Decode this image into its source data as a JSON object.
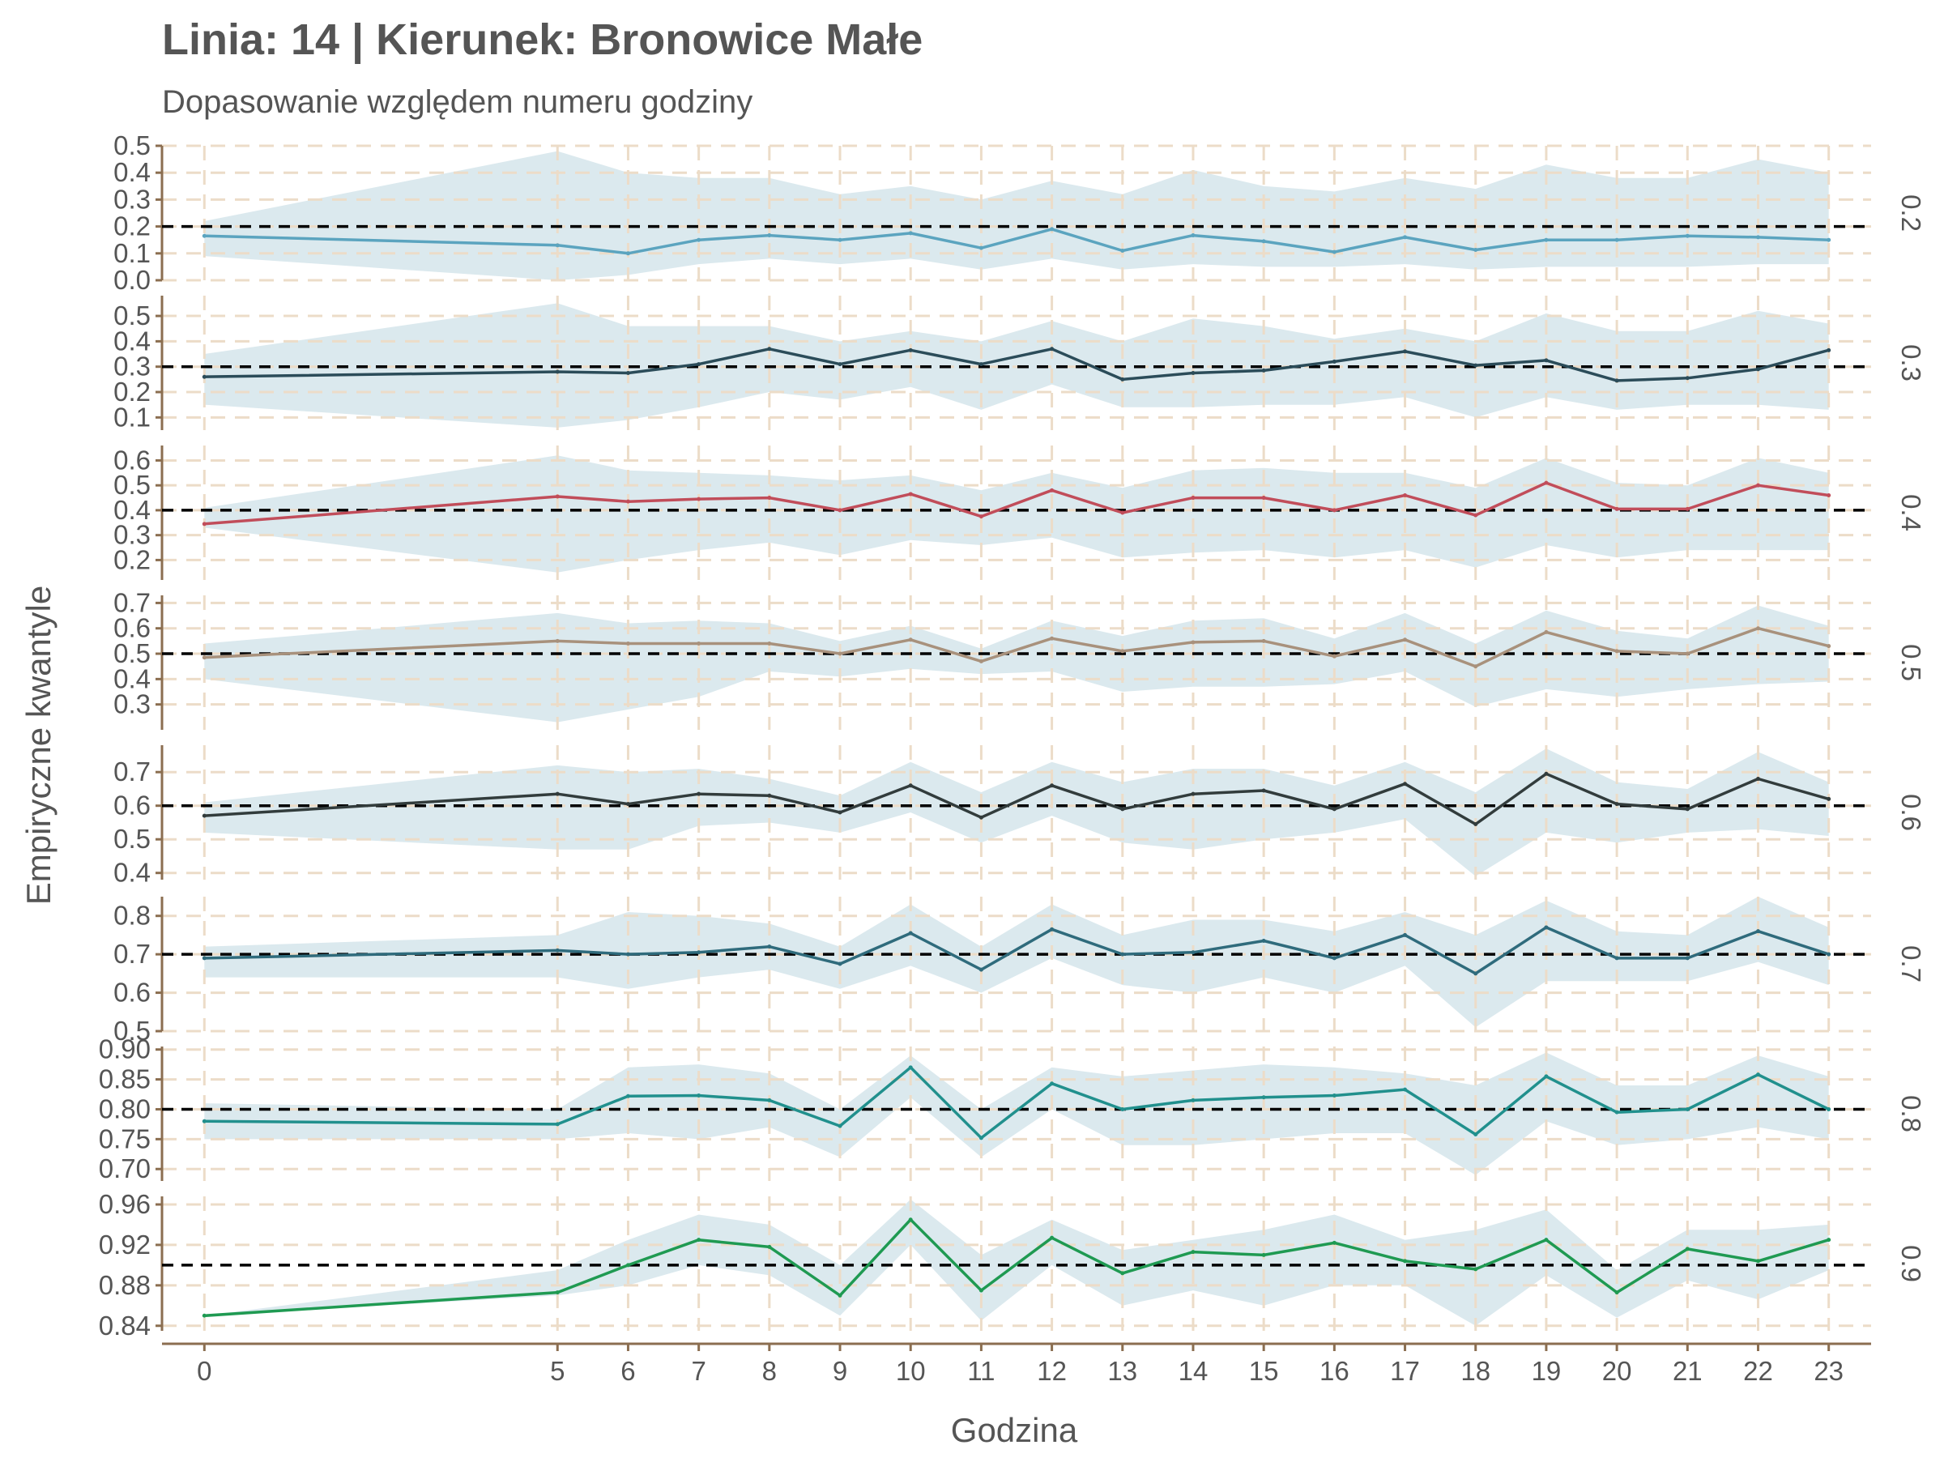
{
  "chart_data": {
    "type": "line",
    "title": "Linia: 14 | Kierunek: Bronowice Małe",
    "subtitle": "Dopasowanie względem numeru godziny",
    "xlabel": "Godzina",
    "ylabel": "Empiryczne kwantyle",
    "x": [
      0,
      5,
      6,
      7,
      8,
      9,
      10,
      11,
      12,
      13,
      14,
      15,
      16,
      17,
      18,
      19,
      20,
      21,
      22,
      23
    ],
    "xlim": [
      -0.6,
      23.6
    ],
    "grid": true,
    "colors": {
      "band": "#dbe9ee",
      "grid": "#ecdcc8",
      "axis": "#8b6e50",
      "reference": "#000000"
    },
    "panels": [
      {
        "label": "0.2",
        "reference": 0.2,
        "ylim": [
          0.0,
          0.5
        ],
        "ticks": [
          "0.0",
          "0.1",
          "0.2",
          "0.3",
          "0.4",
          "0.5"
        ],
        "tick_values": [
          0.0,
          0.1,
          0.2,
          0.3,
          0.4,
          0.5
        ],
        "color": "#5ba4bf",
        "values": [
          0.165,
          0.13,
          0.1,
          0.15,
          0.167,
          0.15,
          0.175,
          0.12,
          0.19,
          0.11,
          0.167,
          0.145,
          0.105,
          0.16,
          0.113,
          0.15,
          0.15,
          0.165,
          0.16,
          0.15
        ],
        "lower": [
          0.09,
          0.0,
          0.02,
          0.06,
          0.08,
          0.06,
          0.08,
          0.04,
          0.08,
          0.04,
          0.06,
          0.05,
          0.05,
          0.06,
          0.04,
          0.05,
          0.05,
          0.05,
          0.06,
          0.06
        ],
        "upper": [
          0.22,
          0.48,
          0.4,
          0.38,
          0.38,
          0.32,
          0.35,
          0.3,
          0.37,
          0.32,
          0.41,
          0.35,
          0.33,
          0.38,
          0.34,
          0.43,
          0.38,
          0.38,
          0.45,
          0.4
        ]
      },
      {
        "label": "0.3",
        "reference": 0.3,
        "ylim": [
          0.05,
          0.58
        ],
        "ticks": [
          "0.1",
          "0.2",
          "0.3",
          "0.4",
          "0.5"
        ],
        "tick_values": [
          0.1,
          0.2,
          0.3,
          0.4,
          0.5
        ],
        "color": "#2b4c59",
        "values": [
          0.26,
          0.28,
          0.275,
          0.31,
          0.37,
          0.31,
          0.365,
          0.31,
          0.37,
          0.25,
          0.275,
          0.285,
          0.32,
          0.36,
          0.305,
          0.325,
          0.245,
          0.255,
          0.29,
          0.365
        ],
        "lower": [
          0.15,
          0.06,
          0.09,
          0.14,
          0.2,
          0.17,
          0.22,
          0.13,
          0.23,
          0.14,
          0.14,
          0.15,
          0.15,
          0.18,
          0.1,
          0.18,
          0.13,
          0.15,
          0.15,
          0.13
        ],
        "upper": [
          0.35,
          0.55,
          0.46,
          0.46,
          0.46,
          0.4,
          0.44,
          0.4,
          0.48,
          0.4,
          0.49,
          0.46,
          0.41,
          0.45,
          0.4,
          0.51,
          0.44,
          0.44,
          0.52,
          0.47
        ]
      },
      {
        "label": "0.4",
        "reference": 0.4,
        "ylim": [
          0.12,
          0.66
        ],
        "ticks": [
          "0.2",
          "0.3",
          "0.4",
          "0.5",
          "0.6"
        ],
        "tick_values": [
          0.2,
          0.3,
          0.4,
          0.5,
          0.6
        ],
        "color": "#c14d5a",
        "values": [
          0.345,
          0.455,
          0.435,
          0.445,
          0.45,
          0.4,
          0.465,
          0.375,
          0.48,
          0.39,
          0.45,
          0.45,
          0.4,
          0.46,
          0.38,
          0.51,
          0.405,
          0.405,
          0.5,
          0.46
        ],
        "lower": [
          0.33,
          0.15,
          0.2,
          0.24,
          0.27,
          0.22,
          0.28,
          0.26,
          0.29,
          0.21,
          0.23,
          0.24,
          0.21,
          0.24,
          0.17,
          0.26,
          0.21,
          0.24,
          0.24,
          0.24
        ],
        "upper": [
          0.41,
          0.62,
          0.56,
          0.55,
          0.54,
          0.52,
          0.54,
          0.48,
          0.55,
          0.49,
          0.56,
          0.57,
          0.55,
          0.55,
          0.49,
          0.61,
          0.51,
          0.5,
          0.61,
          0.55
        ]
      },
      {
        "label": "0.5",
        "reference": 0.5,
        "ylim": [
          0.2,
          0.73
        ],
        "ticks": [
          "0.3",
          "0.4",
          "0.5",
          "0.6",
          "0.7"
        ],
        "tick_values": [
          0.3,
          0.4,
          0.5,
          0.6,
          0.7
        ],
        "color": "#a8917c",
        "values": [
          0.485,
          0.55,
          0.54,
          0.54,
          0.54,
          0.5,
          0.555,
          0.47,
          0.56,
          0.51,
          0.545,
          0.55,
          0.49,
          0.555,
          0.45,
          0.585,
          0.51,
          0.5,
          0.6,
          0.53
        ],
        "lower": [
          0.4,
          0.23,
          0.28,
          0.33,
          0.43,
          0.41,
          0.44,
          0.42,
          0.43,
          0.35,
          0.37,
          0.37,
          0.38,
          0.43,
          0.29,
          0.36,
          0.33,
          0.36,
          0.38,
          0.39
        ],
        "upper": [
          0.54,
          0.66,
          0.62,
          0.63,
          0.62,
          0.55,
          0.61,
          0.52,
          0.63,
          0.57,
          0.63,
          0.64,
          0.56,
          0.66,
          0.54,
          0.67,
          0.59,
          0.56,
          0.69,
          0.61
        ]
      },
      {
        "label": "0.6",
        "reference": 0.6,
        "ylim": [
          0.38,
          0.78
        ],
        "ticks": [
          "0.4",
          "0.5",
          "0.6",
          "0.7"
        ],
        "tick_values": [
          0.4,
          0.5,
          0.6,
          0.7
        ],
        "color": "#323c3c",
        "values": [
          0.57,
          0.635,
          0.605,
          0.635,
          0.63,
          0.58,
          0.66,
          0.565,
          0.66,
          0.59,
          0.635,
          0.645,
          0.59,
          0.665,
          0.545,
          0.695,
          0.605,
          0.59,
          0.68,
          0.62
        ],
        "lower": [
          0.52,
          0.47,
          0.47,
          0.54,
          0.55,
          0.52,
          0.58,
          0.49,
          0.57,
          0.49,
          0.47,
          0.5,
          0.52,
          0.56,
          0.39,
          0.52,
          0.49,
          0.52,
          0.53,
          0.51
        ],
        "upper": [
          0.61,
          0.72,
          0.7,
          0.71,
          0.68,
          0.63,
          0.73,
          0.64,
          0.73,
          0.67,
          0.71,
          0.71,
          0.66,
          0.73,
          0.64,
          0.77,
          0.67,
          0.65,
          0.76,
          0.67
        ]
      },
      {
        "label": "0.7",
        "reference": 0.7,
        "ylim": [
          0.5,
          0.85
        ],
        "ticks": [
          "0.5",
          "0.6",
          "0.7",
          "0.8"
        ],
        "tick_values": [
          0.5,
          0.6,
          0.7,
          0.8
        ],
        "color": "#2f6b7c",
        "values": [
          0.69,
          0.71,
          0.7,
          0.705,
          0.72,
          0.675,
          0.755,
          0.66,
          0.765,
          0.7,
          0.705,
          0.735,
          0.69,
          0.75,
          0.65,
          0.77,
          0.69,
          0.69,
          0.76,
          0.7
        ],
        "lower": [
          0.64,
          0.64,
          0.61,
          0.64,
          0.66,
          0.61,
          0.67,
          0.6,
          0.69,
          0.62,
          0.6,
          0.64,
          0.6,
          0.67,
          0.51,
          0.63,
          0.63,
          0.63,
          0.68,
          0.62
        ],
        "upper": [
          0.72,
          0.75,
          0.81,
          0.8,
          0.78,
          0.72,
          0.83,
          0.72,
          0.83,
          0.75,
          0.79,
          0.79,
          0.76,
          0.81,
          0.75,
          0.84,
          0.76,
          0.75,
          0.85,
          0.77
        ]
      },
      {
        "label": "0.8",
        "reference": 0.8,
        "ylim": [
          0.68,
          0.905
        ],
        "ticks": [
          "0.70",
          "0.75",
          "0.80",
          "0.85",
          "0.90"
        ],
        "tick_values": [
          0.7,
          0.75,
          0.8,
          0.85,
          0.9
        ],
        "color": "#21908d",
        "values": [
          0.78,
          0.775,
          0.822,
          0.823,
          0.815,
          0.772,
          0.87,
          0.752,
          0.843,
          0.8,
          0.815,
          0.82,
          0.823,
          0.833,
          0.758,
          0.855,
          0.795,
          0.8,
          0.858,
          0.8
        ],
        "lower": [
          0.75,
          0.75,
          0.76,
          0.75,
          0.77,
          0.72,
          0.82,
          0.72,
          0.8,
          0.74,
          0.74,
          0.75,
          0.76,
          0.76,
          0.69,
          0.78,
          0.74,
          0.75,
          0.77,
          0.75
        ],
        "upper": [
          0.81,
          0.8,
          0.87,
          0.875,
          0.86,
          0.8,
          0.89,
          0.8,
          0.87,
          0.855,
          0.865,
          0.875,
          0.87,
          0.86,
          0.84,
          0.895,
          0.84,
          0.84,
          0.89,
          0.855
        ]
      },
      {
        "label": "0.9",
        "reference": 0.9,
        "ylim": [
          0.835,
          0.968
        ],
        "ticks": [
          "0.84",
          "0.88",
          "0.92",
          "0.96"
        ],
        "tick_values": [
          0.84,
          0.88,
          0.92,
          0.96
        ],
        "color": "#1f9a52",
        "values": [
          0.85,
          0.873,
          0.9,
          0.925,
          0.918,
          0.87,
          0.945,
          0.875,
          0.927,
          0.892,
          0.913,
          0.91,
          0.922,
          0.904,
          0.896,
          0.925,
          0.873,
          0.916,
          0.904,
          0.925
        ],
        "lower": [
          0.85,
          0.87,
          0.88,
          0.9,
          0.89,
          0.85,
          0.92,
          0.845,
          0.9,
          0.86,
          0.875,
          0.86,
          0.88,
          0.88,
          0.84,
          0.89,
          0.848,
          0.885,
          0.866,
          0.895
        ],
        "upper": [
          0.85,
          0.895,
          0.925,
          0.95,
          0.94,
          0.9,
          0.965,
          0.91,
          0.945,
          0.915,
          0.925,
          0.935,
          0.95,
          0.925,
          0.935,
          0.955,
          0.895,
          0.935,
          0.935,
          0.94
        ]
      }
    ]
  }
}
